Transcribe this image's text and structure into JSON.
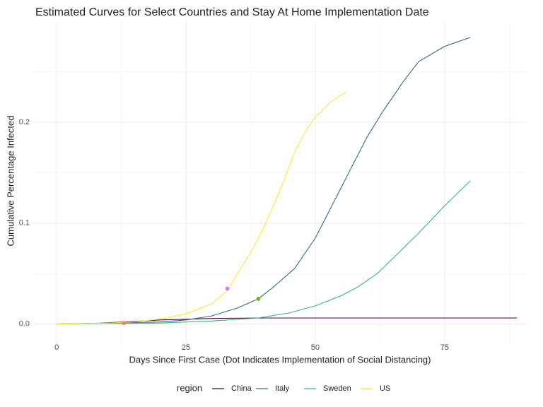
{
  "chart_data": {
    "type": "line",
    "title": "Estimated Curves for Select Countries and Stay At Home Implementation Date",
    "x_label": "Days Since First Case (Dot Indicates Implementation of Social Distancing)",
    "y_label": "Cumulative Percentage Infected",
    "legend_title": "region",
    "legend_position": "bottom",
    "grid": true,
    "xlim": [
      -4.4,
      90.9
    ],
    "ylim": [
      -0.022,
      0.3
    ],
    "xticks": [
      0,
      25,
      50,
      75
    ],
    "yticks": [
      {
        "value": 0,
        "label": "0.0"
      },
      0.1,
      0.2
    ],
    "x_minor_grid": [
      12.5,
      37.5,
      62.5,
      87.5
    ],
    "y_minor_grid": [
      0.05,
      0.15,
      0.25
    ],
    "series": [
      {
        "name": "China",
        "color": "#440154",
        "x": [
          8.5,
          13,
          20,
          30,
          40,
          50,
          60,
          70,
          80,
          89
        ],
        "values": [
          0.001,
          0.002,
          0.004,
          0.0055,
          0.006,
          0.006,
          0.006,
          0.006,
          0.006,
          0.006
        ]
      },
      {
        "name": "Italy",
        "color": "#31688e",
        "x": [
          0,
          10,
          20,
          25,
          30,
          35,
          39,
          42,
          46,
          50,
          53,
          56,
          60,
          63,
          67,
          70,
          75,
          80
        ],
        "values": [
          0,
          0.001,
          0.002,
          0.004,
          0.008,
          0.016,
          0.025,
          0.037,
          0.055,
          0.085,
          0.115,
          0.145,
          0.185,
          0.21,
          0.24,
          0.26,
          0.275,
          0.284
        ]
      },
      {
        "name": "Sweden",
        "color": "#35b779",
        "x": [
          0,
          10,
          20,
          30,
          39,
          45,
          50,
          55,
          58,
          62,
          65,
          70,
          75,
          80
        ],
        "values": [
          0,
          0.0005,
          0.001,
          0.003,
          0.006,
          0.011,
          0.018,
          0.028,
          0.036,
          0.05,
          0.065,
          0.09,
          0.117,
          0.142
        ]
      },
      {
        "name": "US",
        "color": "#fde725",
        "x": [
          0,
          10,
          15,
          20,
          25,
          30,
          33,
          35,
          38,
          40,
          43,
          46,
          48,
          50,
          53,
          56
        ],
        "values": [
          0,
          0.001,
          0.002,
          0.005,
          0.01,
          0.02,
          0.033,
          0.05,
          0.075,
          0.095,
          0.13,
          0.17,
          0.19,
          0.205,
          0.22,
          0.23
        ]
      }
    ],
    "dots": {
      "x": [
        13,
        33,
        39
      ],
      "values": [
        0.001,
        0.035,
        0.025
      ],
      "colors": [
        "#f8766d",
        "#c77cff",
        "#7cae00"
      ]
    }
  }
}
